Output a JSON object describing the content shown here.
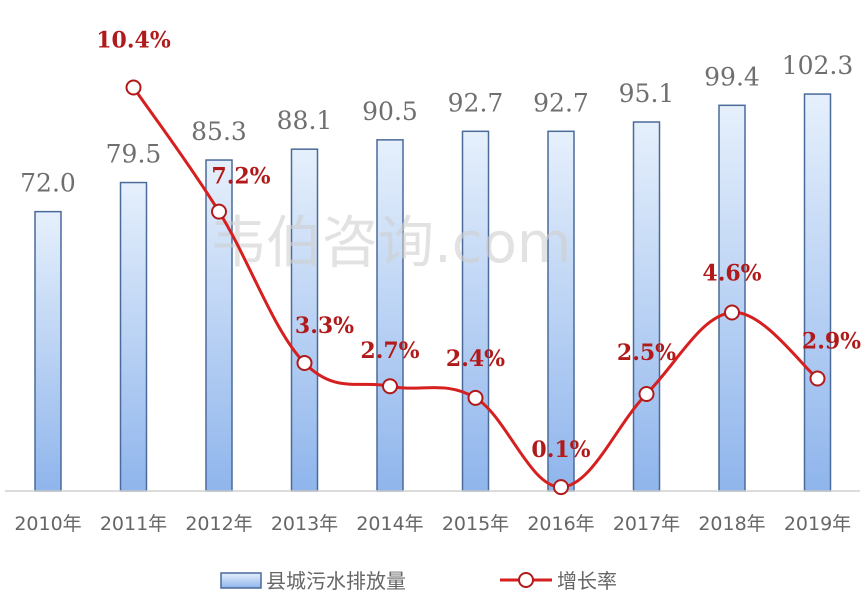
{
  "chart_data": {
    "type": "bar+line",
    "categories": [
      "2010年",
      "2011年",
      "2012年",
      "2013年",
      "2014年",
      "2015年",
      "2016年",
      "2017年",
      "2018年",
      "2019年"
    ],
    "series": [
      {
        "name": "县城污水排放量",
        "type": "bar",
        "values": [
          72.0,
          79.5,
          85.3,
          88.1,
          90.5,
          92.7,
          92.7,
          95.1,
          99.4,
          102.3
        ],
        "labels": [
          "72.0",
          "79.5",
          "85.3",
          "88.1",
          "90.5",
          "92.7",
          "92.7",
          "95.1",
          "99.4",
          "102.3"
        ],
        "color": "#a9c8f2"
      },
      {
        "name": "增长率",
        "type": "line",
        "values": [
          null,
          10.4,
          7.2,
          3.3,
          2.7,
          2.4,
          0.1,
          2.5,
          4.6,
          2.9
        ],
        "labels": [
          "",
          "10.4%",
          "7.2%",
          "3.3%",
          "2.7%",
          "2.4%",
          "0.1%",
          "2.5%",
          "4.6%",
          "2.9%"
        ],
        "color": "#d61f1f"
      }
    ],
    "legend": "bottom",
    "grid": false,
    "watermark": "韦伯咨询.com"
  }
}
